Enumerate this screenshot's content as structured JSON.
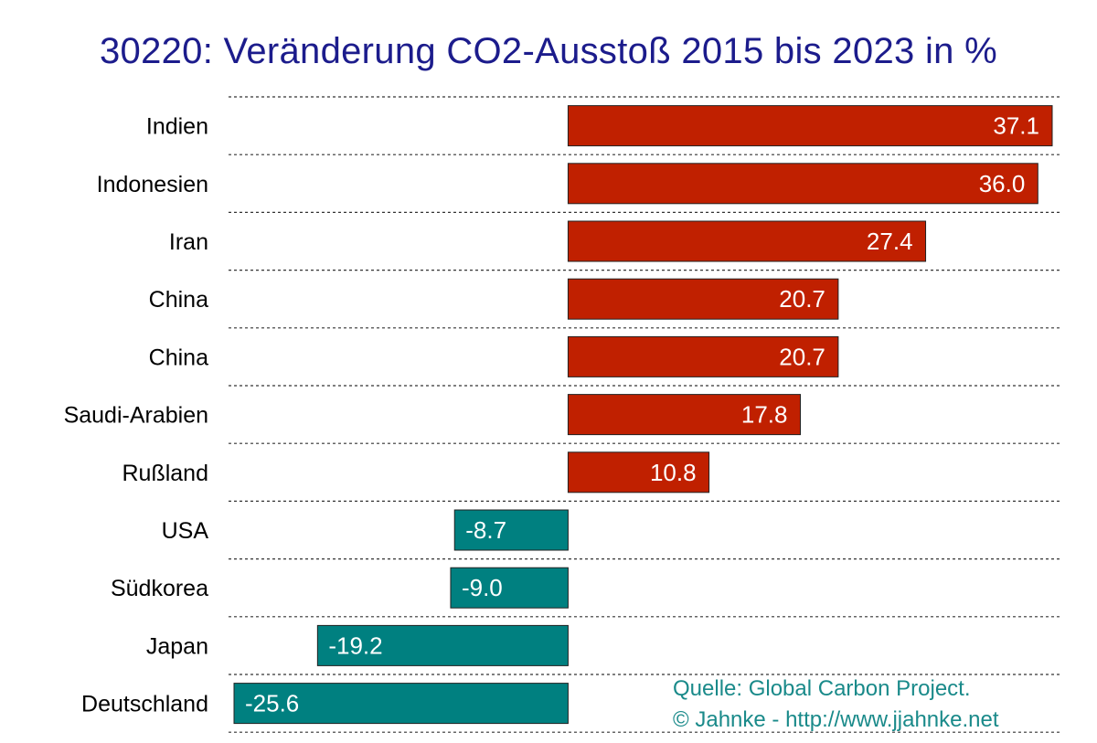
{
  "chart_data": {
    "type": "bar",
    "orientation": "horizontal",
    "title": "30220: Veränderung CO2-Ausstoß 2015 bis 2023 in %",
    "categories": [
      "Indien",
      "Indonesien",
      "Iran",
      "China",
      "China",
      "Saudi-Arabien",
      "Rußland",
      "USA",
      "Südkorea",
      "Japan",
      "Deutschland"
    ],
    "values": [
      37.1,
      36.0,
      27.4,
      20.7,
      20.7,
      17.8,
      10.8,
      -8.7,
      -9.0,
      -19.2,
      -25.6
    ],
    "value_labels": [
      "37.1",
      "36.0",
      "27.4",
      "20.7",
      "20.7",
      "17.8",
      "10.8",
      "-8.7",
      "-9.0",
      "-19.2",
      "-25.6"
    ],
    "xlim": [
      -25.6,
      37.1
    ],
    "grid": "dashed horizontal separators",
    "colors": {
      "positive": "#c02000",
      "negative": "#008080",
      "title": "#1c1c8c",
      "source": "#1a8a8a"
    }
  },
  "source": {
    "line1": "Quelle: Global Carbon Project.",
    "line2": "© Jahnke - http://www.jjahnke.net"
  }
}
